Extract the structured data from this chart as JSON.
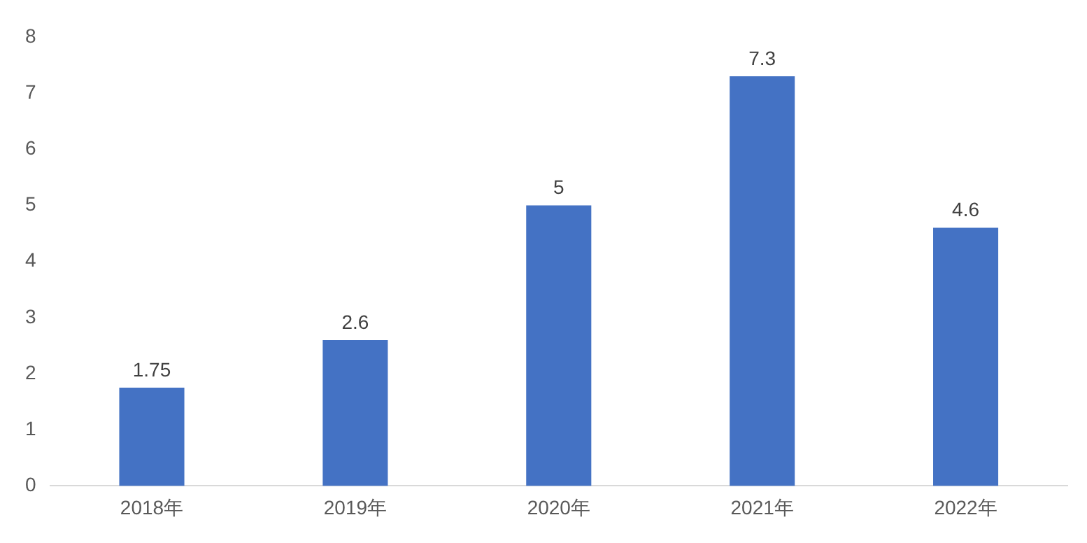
{
  "chart_data": {
    "type": "bar",
    "categories": [
      "2018年",
      "2019年",
      "2020年",
      "2021年",
      "2022年"
    ],
    "values": [
      1.75,
      2.6,
      5,
      7.3,
      4.6
    ],
    "color": "#4472c4",
    "ylim": [
      0,
      8
    ],
    "yticks": [
      0,
      1,
      2,
      3,
      4,
      5,
      6,
      7,
      8
    ],
    "grid": false,
    "legend": false,
    "data_labels": true
  }
}
